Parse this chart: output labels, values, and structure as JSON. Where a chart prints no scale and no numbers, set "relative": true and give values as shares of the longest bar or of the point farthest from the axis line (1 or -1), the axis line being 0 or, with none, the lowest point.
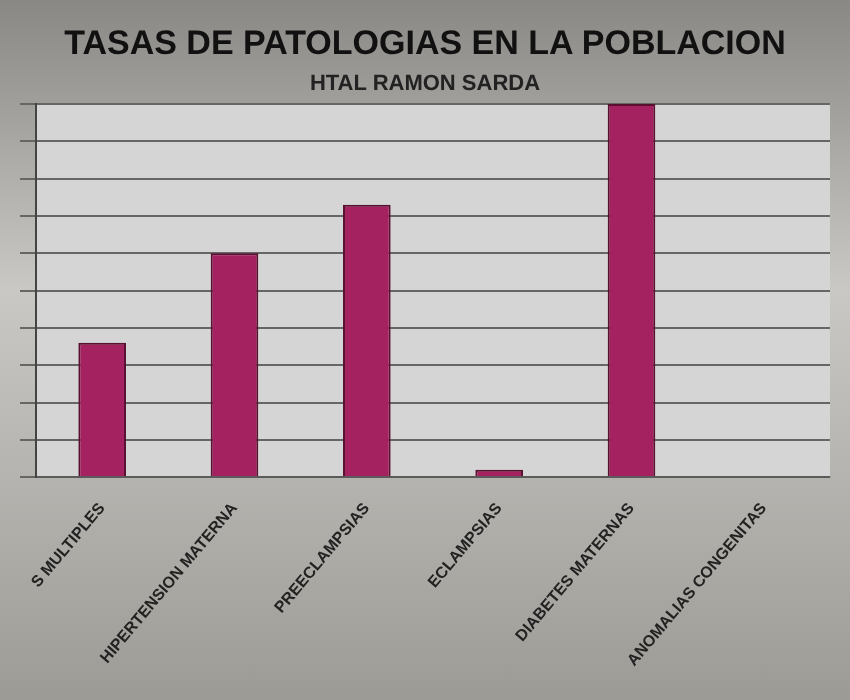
{
  "chart_data": {
    "type": "bar",
    "title": "TASAS DE PATOLOGIAS EN LA POBLACION",
    "subtitle": "HTAL RAMON SARDA",
    "categories": [
      "S MULTIPLES",
      "HIPERTENSION MATERNA",
      "PREECLAMPSIAS",
      "ECLAMPSIAS",
      "DIABETES MATERNAS",
      "ANOMALIAS CONGENITAS"
    ],
    "values": [
      0.36,
      0.6,
      0.73,
      0.02,
      1,
      0
    ],
    "color": "#a3225f",
    "relative": true,
    "grid": "y"
  }
}
